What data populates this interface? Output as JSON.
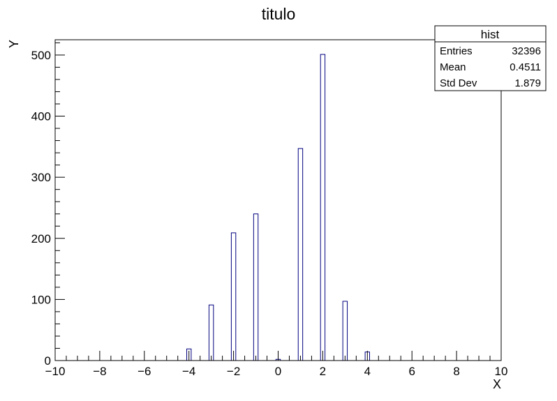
{
  "chart_data": {
    "type": "bar",
    "title": "titulo",
    "xlabel": "X",
    "ylabel": "Y",
    "xlim": [
      -10,
      10
    ],
    "ylim": [
      0,
      525
    ],
    "x_ticks": [
      "−10",
      "−8",
      "−6",
      "−4",
      "−2",
      "0",
      "2",
      "4",
      "6",
      "8",
      "10"
    ],
    "y_ticks": [
      "0",
      "100",
      "200",
      "300",
      "400",
      "500"
    ],
    "bin_width": 0.2,
    "series": [
      {
        "x": [
          -4,
          -3,
          -2,
          -1,
          0,
          1,
          2,
          3,
          4
        ],
        "values": [
          19,
          91,
          209,
          240,
          2,
          347,
          501,
          97,
          14
        ],
        "color": "#000080"
      }
    ],
    "legend": "top-right",
    "grid": false
  },
  "stats_box": {
    "name": "hist",
    "rows": [
      {
        "label": "Entries",
        "value": "32396"
      },
      {
        "label": "Mean",
        "value": "0.4511"
      },
      {
        "label": "Std Dev",
        "value": "1.879"
      }
    ]
  }
}
